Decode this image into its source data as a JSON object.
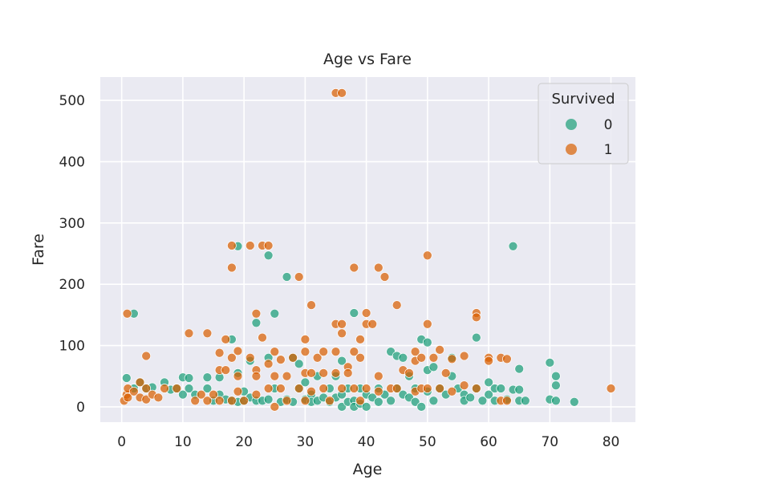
{
  "chart_data": {
    "type": "scatter",
    "title": "Age vs Fare",
    "xlabel": "Age",
    "ylabel": "Fare",
    "xlim": [
      -3.5,
      84
    ],
    "ylim": [
      -25,
      538
    ],
    "xticks": [
      0,
      10,
      20,
      30,
      40,
      50,
      60,
      70,
      80
    ],
    "yticks": [
      0,
      100,
      200,
      300,
      400,
      500
    ],
    "grid": true,
    "legend": {
      "title": "Survived",
      "position": "top-right"
    },
    "series": [
      {
        "name": "0",
        "color": "#1b9e77",
        "points": [
          [
            0.8,
            47
          ],
          [
            2,
            152
          ],
          [
            2,
            30
          ],
          [
            3,
            40
          ],
          [
            4,
            30
          ],
          [
            5,
            32
          ],
          [
            7,
            40
          ],
          [
            8,
            28
          ],
          [
            9,
            30
          ],
          [
            10,
            48
          ],
          [
            10,
            20
          ],
          [
            11,
            47
          ],
          [
            11,
            30
          ],
          [
            12,
            20
          ],
          [
            14,
            48
          ],
          [
            14,
            30
          ],
          [
            15,
            10
          ],
          [
            16,
            48
          ],
          [
            16,
            20
          ],
          [
            17,
            12
          ],
          [
            18,
            110
          ],
          [
            18,
            10
          ],
          [
            19,
            262
          ],
          [
            19,
            55
          ],
          [
            19,
            8
          ],
          [
            20,
            10
          ],
          [
            20,
            25
          ],
          [
            21,
            15
          ],
          [
            21,
            75
          ],
          [
            22,
            137
          ],
          [
            22,
            10
          ],
          [
            23,
            10
          ],
          [
            24,
            247
          ],
          [
            24,
            80
          ],
          [
            24,
            12
          ],
          [
            25,
            152
          ],
          [
            25,
            30
          ],
          [
            26,
            8
          ],
          [
            27,
            212
          ],
          [
            27,
            12
          ],
          [
            28,
            80
          ],
          [
            28,
            8
          ],
          [
            29,
            70
          ],
          [
            29,
            30
          ],
          [
            30,
            12
          ],
          [
            30,
            40
          ],
          [
            31,
            20
          ],
          [
            31,
            8
          ],
          [
            32,
            50
          ],
          [
            32,
            10
          ],
          [
            33,
            15
          ],
          [
            34,
            30
          ],
          [
            34,
            8
          ],
          [
            35,
            15
          ],
          [
            35,
            50
          ],
          [
            36,
            75
          ],
          [
            36,
            20
          ],
          [
            36,
            0
          ],
          [
            37,
            8
          ],
          [
            37,
            30
          ],
          [
            38,
            153
          ],
          [
            38,
            10
          ],
          [
            38,
            0
          ],
          [
            39,
            30
          ],
          [
            39,
            5
          ],
          [
            40,
            20
          ],
          [
            40,
            0
          ],
          [
            41,
            15
          ],
          [
            42,
            30
          ],
          [
            42,
            8
          ],
          [
            43,
            20
          ],
          [
            44,
            90
          ],
          [
            44,
            10
          ],
          [
            45,
            83
          ],
          [
            45,
            30
          ],
          [
            46,
            80
          ],
          [
            46,
            20
          ],
          [
            47,
            50
          ],
          [
            47,
            15
          ],
          [
            48,
            30
          ],
          [
            48,
            8
          ],
          [
            49,
            110
          ],
          [
            49,
            0
          ],
          [
            50,
            105
          ],
          [
            50,
            60
          ],
          [
            50,
            25
          ],
          [
            51,
            65
          ],
          [
            51,
            10
          ],
          [
            52,
            30
          ],
          [
            53,
            20
          ],
          [
            54,
            80
          ],
          [
            54,
            50
          ],
          [
            55,
            30
          ],
          [
            56,
            20
          ],
          [
            56,
            10
          ],
          [
            57,
            15
          ],
          [
            58,
            113
          ],
          [
            58,
            30
          ],
          [
            59,
            10
          ],
          [
            60,
            40
          ],
          [
            60,
            20
          ],
          [
            61,
            30
          ],
          [
            61,
            10
          ],
          [
            62,
            30
          ],
          [
            63,
            12
          ],
          [
            64,
            262
          ],
          [
            64,
            28
          ],
          [
            65,
            62
          ],
          [
            65,
            28
          ],
          [
            65,
            10
          ],
          [
            66,
            10
          ],
          [
            70,
            72
          ],
          [
            70,
            12
          ],
          [
            71,
            50
          ],
          [
            71,
            35
          ],
          [
            71,
            10
          ],
          [
            74,
            8
          ]
        ]
      },
      {
        "name": "1",
        "color": "#d95f02",
        "points": [
          [
            0.4,
            10
          ],
          [
            0.8,
            20
          ],
          [
            0.9,
            152
          ],
          [
            1,
            30
          ],
          [
            1,
            15
          ],
          [
            2,
            25
          ],
          [
            3,
            40
          ],
          [
            3,
            15
          ],
          [
            4,
            83
          ],
          [
            4,
            30
          ],
          [
            4,
            12
          ],
          [
            5,
            20
          ],
          [
            6,
            15
          ],
          [
            7,
            30
          ],
          [
            9,
            30
          ],
          [
            11,
            120
          ],
          [
            12,
            10
          ],
          [
            13,
            20
          ],
          [
            14,
            120
          ],
          [
            14,
            10
          ],
          [
            15,
            20
          ],
          [
            16,
            88
          ],
          [
            16,
            60
          ],
          [
            16,
            10
          ],
          [
            17,
            110
          ],
          [
            17,
            60
          ],
          [
            18,
            263
          ],
          [
            18,
            227
          ],
          [
            18,
            80
          ],
          [
            18,
            10
          ],
          [
            19,
            91
          ],
          [
            19,
            50
          ],
          [
            19,
            25
          ],
          [
            20,
            10
          ],
          [
            21,
            263
          ],
          [
            21,
            80
          ],
          [
            22,
            152
          ],
          [
            22,
            60
          ],
          [
            22,
            50
          ],
          [
            22,
            20
          ],
          [
            23,
            263
          ],
          [
            23,
            113
          ],
          [
            24,
            263
          ],
          [
            24,
            70
          ],
          [
            24,
            30
          ],
          [
            25,
            90
          ],
          [
            25,
            50
          ],
          [
            25,
            0
          ],
          [
            26,
            77
          ],
          [
            26,
            30
          ],
          [
            27,
            50
          ],
          [
            27,
            10
          ],
          [
            28,
            80
          ],
          [
            29,
            212
          ],
          [
            29,
            30
          ],
          [
            30,
            110
          ],
          [
            30,
            90
          ],
          [
            30,
            55
          ],
          [
            30,
            10
          ],
          [
            31,
            166
          ],
          [
            31,
            55
          ],
          [
            31,
            25
          ],
          [
            32,
            80
          ],
          [
            33,
            90
          ],
          [
            33,
            55
          ],
          [
            33,
            30
          ],
          [
            34,
            10
          ],
          [
            35,
            512
          ],
          [
            35,
            135
          ],
          [
            35,
            90
          ],
          [
            35,
            55
          ],
          [
            36,
            512
          ],
          [
            36,
            135
          ],
          [
            36,
            120
          ],
          [
            36,
            30
          ],
          [
            37,
            65
          ],
          [
            37,
            55
          ],
          [
            38,
            227
          ],
          [
            38,
            90
          ],
          [
            38,
            30
          ],
          [
            39,
            110
          ],
          [
            39,
            80
          ],
          [
            39,
            10
          ],
          [
            40,
            153
          ],
          [
            40,
            135
          ],
          [
            40,
            30
          ],
          [
            41,
            135
          ],
          [
            42,
            227
          ],
          [
            42,
            50
          ],
          [
            42,
            25
          ],
          [
            43,
            212
          ],
          [
            44,
            30
          ],
          [
            45,
            166
          ],
          [
            45,
            30
          ],
          [
            46,
            60
          ],
          [
            47,
            55
          ],
          [
            48,
            90
          ],
          [
            48,
            75
          ],
          [
            48,
            25
          ],
          [
            49,
            80
          ],
          [
            49,
            30
          ],
          [
            50,
            247
          ],
          [
            50,
            135
          ],
          [
            50,
            30
          ],
          [
            51,
            80
          ],
          [
            52,
            93
          ],
          [
            52,
            30
          ],
          [
            53,
            55
          ],
          [
            54,
            78
          ],
          [
            54,
            25
          ],
          [
            56,
            83
          ],
          [
            56,
            35
          ],
          [
            58,
            153
          ],
          [
            58,
            146
          ],
          [
            58,
            30
          ],
          [
            60,
            80
          ],
          [
            60,
            75
          ],
          [
            62,
            80
          ],
          [
            62,
            10
          ],
          [
            63,
            78
          ],
          [
            63,
            10
          ],
          [
            80,
            30
          ]
        ]
      }
    ]
  }
}
